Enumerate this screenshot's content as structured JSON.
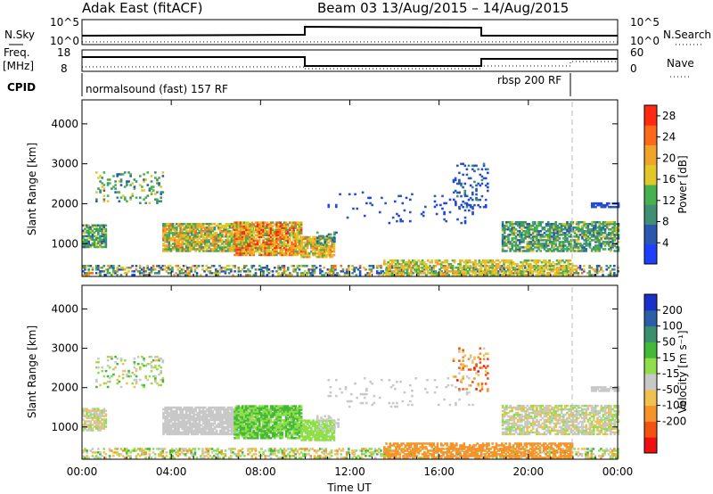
{
  "header": {
    "station": "Adak East (fitACF)",
    "beam_range": "Beam 03 13/Aug/2015 – 14/Aug/2015"
  },
  "panels": {
    "nsky_label": "N.Sky",
    "nsky_ticks": [
      "10^5",
      "10^0"
    ],
    "nsearch_label": "N.Search",
    "nsearch_ticks": [
      "10^5",
      "10^0"
    ],
    "freq_label": "Freq.",
    "freq_unit": "[MHz]",
    "freq_ticks": [
      "18",
      "8"
    ],
    "nave_label": "Nave",
    "nave_ticks": [
      "60",
      "0"
    ],
    "cpid_label": "CPID",
    "cpid_segments": [
      "normalsound (fast) 157 RF",
      "rbsp 200 RF"
    ]
  },
  "colors": {
    "power": [
      "#1f3fff",
      "#2a58b0",
      "#3f8f74",
      "#47b04f",
      "#e2c72a",
      "#f0a52a",
      "#ff6a1a",
      "#ff2a10"
    ],
    "velocity": [
      "#ee1010",
      "#f3520f",
      "#f4942a",
      "#f0c050",
      "#c8c8c8",
      "#8fdf4a",
      "#44b838",
      "#3a8f6f",
      "#2c5ea8",
      "#1a30c8"
    ]
  },
  "chart_data": [
    {
      "type": "heatmap",
      "title": "Power",
      "xlabel": "",
      "ylabel": "Slant Range [km]",
      "xlim": [
        "00:00",
        "00:00"
      ],
      "ylim": [
        180,
        4600
      ],
      "yticks": [
        "4000",
        "3000",
        "2000",
        "1000"
      ],
      "colorbar": {
        "label": "Power [dB]",
        "ticks": [
          "28",
          "24",
          "20",
          "16",
          "12",
          "8",
          "4"
        ],
        "range": [
          0,
          30
        ]
      }
    },
    {
      "type": "heatmap",
      "title": "Velocity",
      "xlabel": "Time UT",
      "ylabel": "Slant Range [km]",
      "xticks": [
        "00:00",
        "04:00",
        "08:00",
        "12:00",
        "16:00",
        "20:00",
        "00:00"
      ],
      "ylim": [
        180,
        4600
      ],
      "yticks": [
        "4000",
        "3000",
        "2000",
        "1000"
      ],
      "colorbar": {
        "label": "Velocity [m s⁻¹]",
        "ticks": [
          "200",
          "100",
          "50",
          "15",
          "-15",
          "-50",
          "-100",
          "-200"
        ],
        "range": [
          -250,
          250
        ]
      }
    }
  ]
}
